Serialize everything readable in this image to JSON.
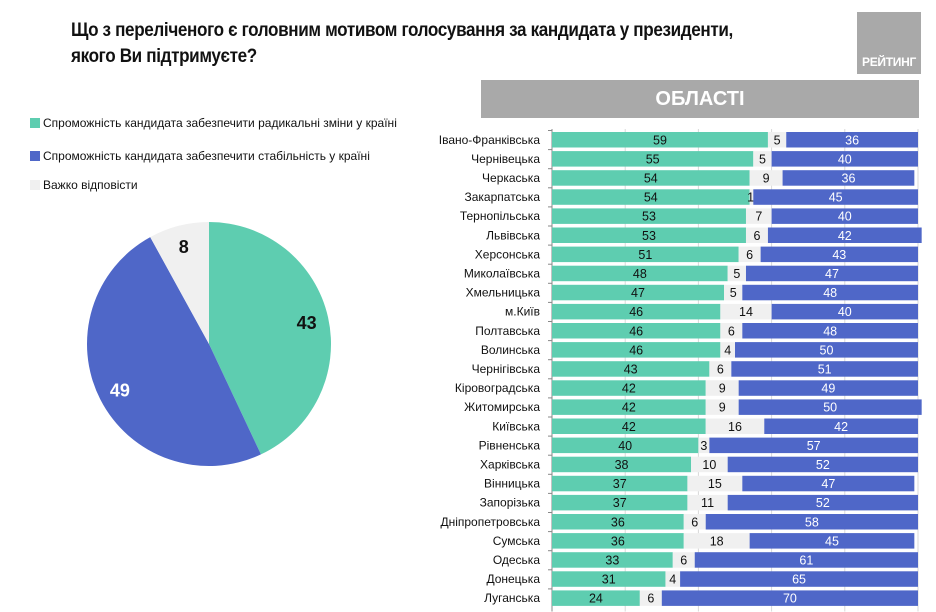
{
  "header": {
    "title_line1": "Що з переліченого є головним мотивом голосування за кандидата у президенти,",
    "title_line2": "якого Ви підтримуєте?",
    "logo_text": "РЕЙТИНГ",
    "section_band": "ОБЛАСТІ"
  },
  "colors": {
    "radical": "#5ecdb0",
    "stability": "#4f67c8",
    "hard": "#f0f0f0",
    "band": "#a9a9a9"
  },
  "legend": [
    {
      "label": "Спроможність кандидата забезпечити радикальні зміни у країні",
      "color_key": "radical"
    },
    {
      "label": "Спроможність кандидата забезпечити стабільність у країні",
      "color_key": "stability"
    },
    {
      "label": "Важко відповісти",
      "color_key": "hard"
    }
  ],
  "chart_data": [
    {
      "type": "pie",
      "title": "",
      "slices": [
        {
          "name": "Спроможність кандидата забезпечити радикальні зміни у країні",
          "value": 43,
          "label": "43"
        },
        {
          "name": "Спроможність кандидата забезпечити стабільність у країні",
          "value": 49,
          "label": "49"
        },
        {
          "name": "Важко відповісти",
          "value": 8,
          "label": "8"
        }
      ]
    },
    {
      "type": "bar",
      "orientation": "horizontal",
      "stacked": true,
      "title": "ОБЛАСТІ",
      "xlim": [
        0,
        100
      ],
      "grid": true,
      "categories": [
        "Івано-Франківська",
        "Чернівецька",
        "Черкаська",
        "Закарпатська",
        "Тернопільська",
        "Львівська",
        "Херсонська",
        "Миколаївська",
        "Хмельницька",
        "м.Київ",
        "Полтавська",
        "Волинська",
        "Чернігівська",
        "Кіровоградська",
        "Житомирська",
        "Київська",
        "Рівненська",
        "Харківська",
        "Вінницька",
        "Запорізька",
        "Дніпропетровська",
        "Сумська",
        "Одеська",
        "Донецька",
        "Луганська"
      ],
      "series": [
        {
          "name": "Спроможність кандидата забезпечити радикальні зміни у країні",
          "color_key": "radical",
          "values": [
            59,
            55,
            54,
            54,
            53,
            53,
            51,
            48,
            47,
            46,
            46,
            46,
            43,
            42,
            42,
            42,
            40,
            38,
            37,
            37,
            36,
            36,
            33,
            31,
            24
          ]
        },
        {
          "name": "Важко відповісти",
          "color_key": "hard",
          "values": [
            5,
            5,
            9,
            1,
            7,
            6,
            6,
            5,
            5,
            14,
            6,
            4,
            6,
            9,
            9,
            16,
            3,
            10,
            15,
            11,
            6,
            18,
            6,
            4,
            6
          ]
        },
        {
          "name": "Спроможність кандидата забезпечити стабільність у країні",
          "color_key": "stability",
          "values": [
            36,
            40,
            36,
            45,
            40,
            42,
            43,
            47,
            48,
            40,
            48,
            50,
            51,
            49,
            50,
            42,
            57,
            52,
            47,
            52,
            58,
            45,
            61,
            65,
            70
          ]
        }
      ]
    }
  ]
}
